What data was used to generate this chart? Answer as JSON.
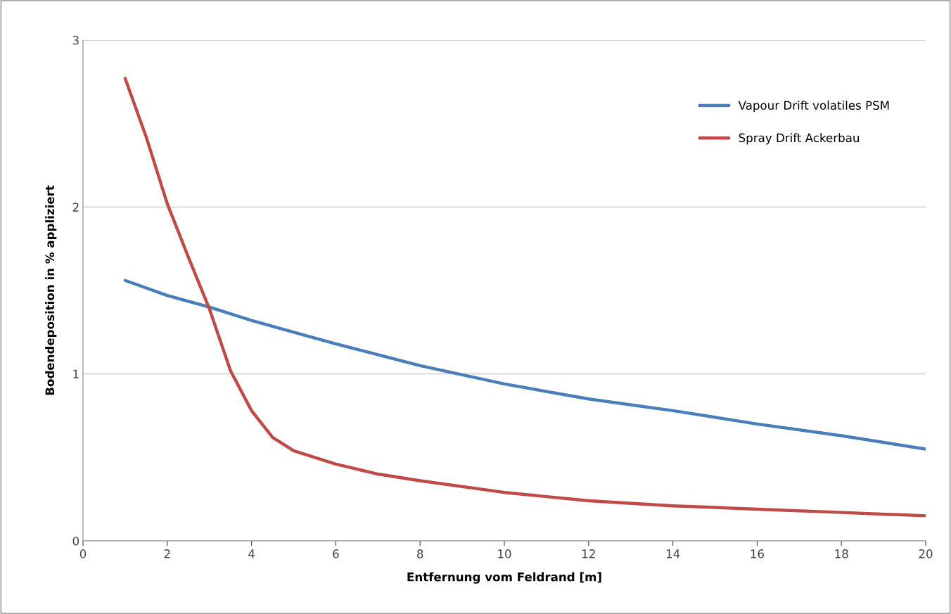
{
  "chart_data": {
    "type": "line",
    "xlabel": "Entfernung vom Feldrand [m]",
    "ylabel": "Bodendeposition in % appliziert",
    "xlim": [
      0,
      20
    ],
    "xticks": [
      0,
      2,
      4,
      6,
      8,
      10,
      12,
      14,
      16,
      18,
      20
    ],
    "ylim": [
      0,
      3
    ],
    "yticks": [
      0,
      1,
      2,
      3
    ],
    "grid": "y",
    "legend": "top right",
    "marker": "none",
    "line_style": "solid",
    "series": [
      {
        "name": "Vapour Drift volatiles PSM",
        "color": "#4a7ebb",
        "x": [
          1,
          2,
          3,
          4,
          5,
          6,
          8,
          10,
          12,
          14,
          16,
          18,
          20
        ],
        "values": [
          1.56,
          1.47,
          1.4,
          1.32,
          1.25,
          1.18,
          1.05,
          0.94,
          0.85,
          0.78,
          0.7,
          0.63,
          0.55
        ]
      },
      {
        "name": "Spray Drift Ackerbau",
        "color": "#be4b48",
        "x": [
          1,
          1.5,
          2,
          2.5,
          3,
          3.5,
          4,
          4.5,
          5,
          6,
          7,
          8,
          10,
          12,
          14,
          16,
          18,
          20
        ],
        "values": [
          2.77,
          2.42,
          2.02,
          1.7,
          1.39,
          1.02,
          0.78,
          0.62,
          0.54,
          0.46,
          0.4,
          0.36,
          0.29,
          0.24,
          0.21,
          0.19,
          0.17,
          0.15
        ]
      }
    ]
  }
}
